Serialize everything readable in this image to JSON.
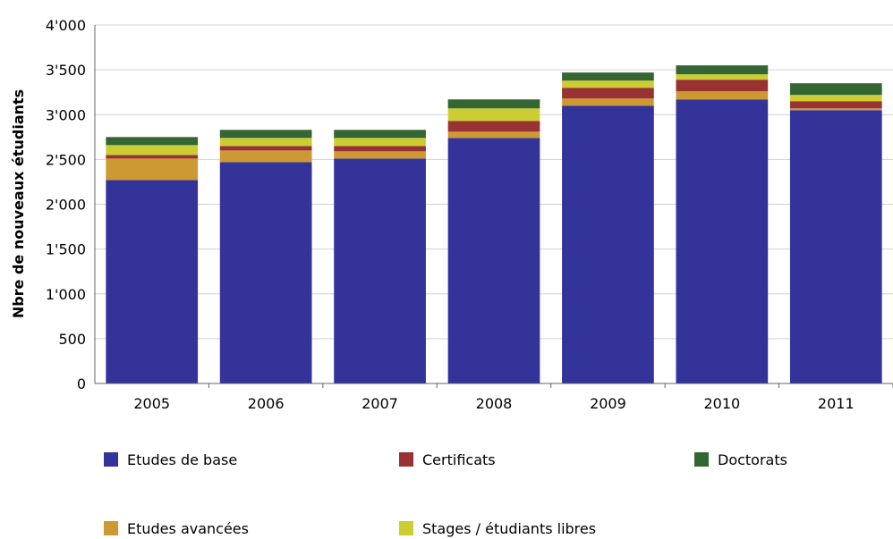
{
  "chart_data": {
    "type": "bar",
    "stacked": true,
    "categories": [
      "2005",
      "2006",
      "2007",
      "2008",
      "2009",
      "2010",
      "2011"
    ],
    "ylabel": "Nbre de nouveaux étudiants",
    "ylim": [
      0,
      4000
    ],
    "yticks": [
      0,
      500,
      1000,
      1500,
      2000,
      2500,
      3000,
      3500,
      4000
    ],
    "ytick_labels": [
      "0",
      "500",
      "1'000",
      "1'500",
      "2'000",
      "2'500",
      "3'000",
      "3'500",
      "4'000"
    ],
    "grid": true,
    "legend_position": "bottom",
    "series": [
      {
        "name": "Etudes de base",
        "color": "#333399",
        "values": [
          2270,
          2470,
          2510,
          2740,
          3100,
          3170,
          3050
        ]
      },
      {
        "name": "Etudes avancées",
        "color": "#CC9933",
        "values": [
          240,
          130,
          80,
          70,
          80,
          90,
          20
        ]
      },
      {
        "name": "Certificats",
        "color": "#993333",
        "values": [
          40,
          50,
          60,
          120,
          120,
          130,
          80
        ]
      },
      {
        "name": "Stages / étudiants libres",
        "color": "#CCCC33",
        "values": [
          110,
          90,
          90,
          140,
          80,
          60,
          70
        ]
      },
      {
        "name": "Doctorats",
        "color": "#336633",
        "values": [
          90,
          90,
          90,
          100,
          90,
          100,
          130
        ]
      }
    ],
    "legend_order": [
      "Etudes de base",
      "Certificats",
      "Doctorats",
      "Etudes avancées",
      "Stages / étudiants libres"
    ]
  }
}
